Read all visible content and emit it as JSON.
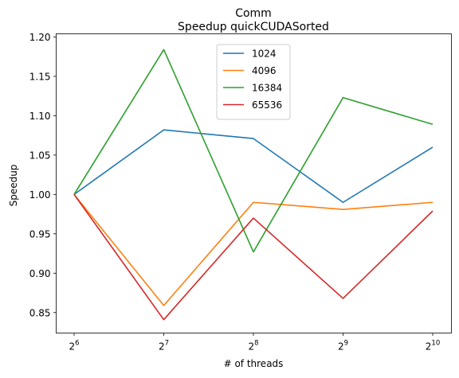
{
  "chart_data": {
    "type": "line",
    "title": "Comm",
    "subtitle": "Speedup quickCUDASorted",
    "xlabel": "# of threads",
    "ylabel": "Speedup",
    "x": [
      64,
      128,
      256,
      512,
      1024
    ],
    "x_tick_base": "2",
    "x_tick_exponents": [
      "6",
      "7",
      "8",
      "9",
      "10"
    ],
    "x_scale": "log2",
    "ylim": [
      0.824,
      1.204
    ],
    "y_ticks": [
      "0.85",
      "0.90",
      "0.95",
      "1.00",
      "1.05",
      "1.10",
      "1.15",
      "1.20"
    ],
    "y_tick_values": [
      0.85,
      0.9,
      0.95,
      1.0,
      1.05,
      1.1,
      1.15,
      1.2
    ],
    "grid": false,
    "legend_position": "upper center",
    "series": [
      {
        "name": "1024",
        "color": "#1f77b4",
        "values": [
          1.0,
          1.082,
          1.071,
          0.99,
          1.06
        ]
      },
      {
        "name": "4096",
        "color": "#ff7f0e",
        "values": [
          1.0,
          0.859,
          0.99,
          0.981,
          0.99
        ]
      },
      {
        "name": "16384",
        "color": "#2ca02c",
        "values": [
          1.0,
          1.184,
          0.927,
          1.123,
          1.089
        ]
      },
      {
        "name": "65536",
        "color": "#d62728",
        "values": [
          1.0,
          0.841,
          0.97,
          0.868,
          0.979
        ]
      }
    ]
  }
}
